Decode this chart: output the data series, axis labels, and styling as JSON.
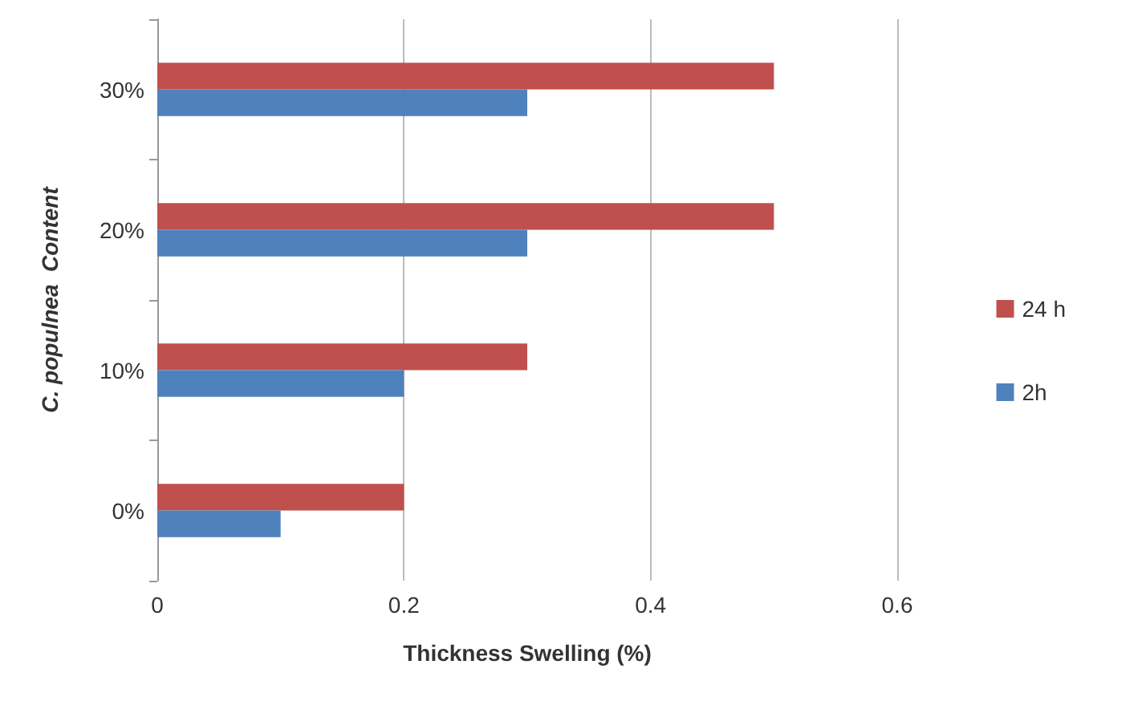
{
  "chart_data": {
    "type": "bar",
    "orientation": "horizontal",
    "xlabel": "Thickness Swelling (%)",
    "ylabel": "C. populnea  Content",
    "categories": [
      "30%",
      "20%",
      "10%",
      "0%"
    ],
    "series": [
      {
        "name": "24 h",
        "color": "#c0504d",
        "values": [
          0.5,
          0.5,
          0.3,
          0.2
        ]
      },
      {
        "name": "2h",
        "color": "#4f81bd",
        "values": [
          0.3,
          0.3,
          0.2,
          0.1
        ]
      }
    ],
    "xlim": [
      0,
      0.6
    ],
    "xticks": [
      0,
      0.2,
      0.4,
      0.6
    ],
    "grid": "x",
    "legend": "right"
  }
}
